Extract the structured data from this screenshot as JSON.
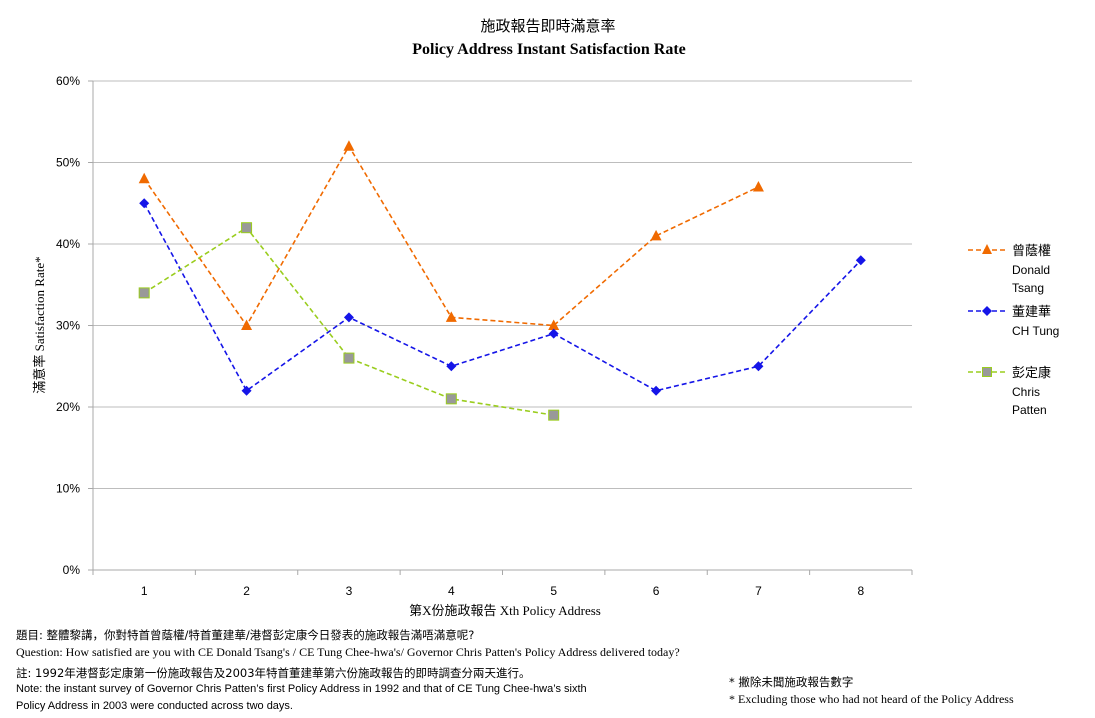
{
  "chart_data": {
    "type": "line",
    "title_zh": "施政報告即時滿意率",
    "title_en": "Policy Address Instant Satisfaction Rate",
    "xlabel": "第X份施政報告 Xth Policy Address",
    "ylabel": "滿意率 Satisfaction Rate*",
    "categories": [
      "1",
      "2",
      "3",
      "4",
      "5",
      "6",
      "7",
      "8"
    ],
    "y_ticks": [
      "0%",
      "10%",
      "20%",
      "30%",
      "40%",
      "50%",
      "60%"
    ],
    "ylim": [
      0,
      60
    ],
    "series": [
      {
        "key": "tsang",
        "name_zh": "曾蔭權",
        "name_en_1": "Donald",
        "name_en_2": "Tsang",
        "color": "#f06a00",
        "marker": "triangle",
        "values": [
          48,
          30,
          52,
          31,
          30,
          41,
          47,
          null
        ]
      },
      {
        "key": "tung",
        "name_zh": "董建華",
        "name_en_1": "CH Tung",
        "name_en_2": "",
        "color": "#1515e8",
        "marker": "diamond",
        "values": [
          45,
          22,
          31,
          25,
          29,
          22,
          25,
          38
        ]
      },
      {
        "key": "patten",
        "name_zh": "彭定康",
        "name_en_1": "Chris",
        "name_en_2": "Patten",
        "color": "#9acd1e",
        "marker": "square",
        "marker_color": "#999999",
        "values": [
          34,
          42,
          26,
          21,
          19,
          null,
          null,
          null
        ]
      }
    ],
    "legend_position": "right"
  },
  "notes": {
    "question_zh": "題目: 整體黎講，你對特首曾蔭權/特首董建華/港督彭定康今日發表的施政報告滿唔滿意呢?",
    "question_en": "Question: How satisfied are you with CE Donald Tsang's / CE Tung Chee-hwa's/ Governor Chris Patten's Policy Address delivered today?",
    "remark_zh": "註: 1992年港督彭定康第一份施政報告及2003年特首董建華第六份施政報告的即時調查分兩天進行。",
    "remark_en_1": "Note: the instant survey of Governor Chris Patten’s first Policy Address in 1992 and that of CE Tung Chee-hwa’s sixth",
    "remark_en_2": "Policy Address in 2003 were conducted across two days.",
    "exclude_zh": "* 撇除未聞施政報告數字",
    "exclude_en": "* Excluding  those who had not heard of the Policy Address"
  }
}
